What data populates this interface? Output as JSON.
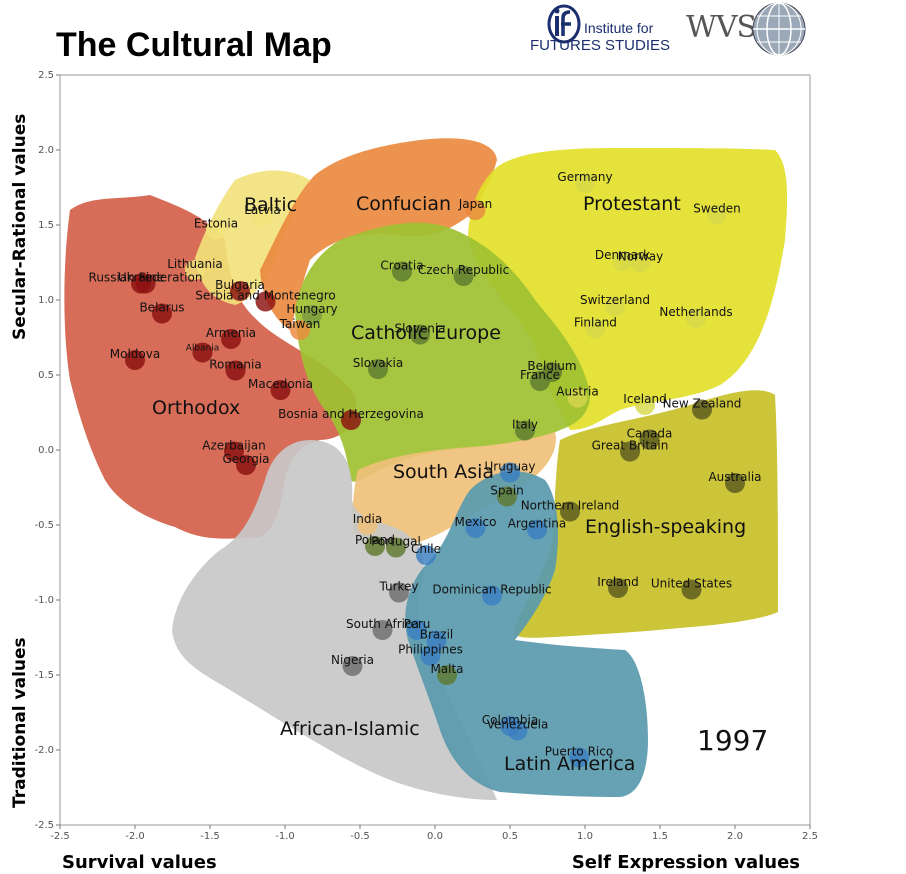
{
  "title": "The Cultural Map",
  "logos": {
    "iff_line1": "Institute for",
    "iff_line2": "FUTURES STUDIES",
    "wvs": "WVS"
  },
  "chart_data": {
    "type": "scatter",
    "year": "1997",
    "xlabel_left": "Survival values",
    "xlabel_right": "Self Expression values",
    "ylabel_top": "Secular-Rational values",
    "ylabel_bottom": "Traditional values",
    "xlim": [
      -2.5,
      2.5
    ],
    "ylim": [
      -2.5,
      2.5
    ],
    "xticks": [
      "-2.5",
      "-2.0",
      "-1.5",
      "-1.0",
      "-0.5",
      "0.0",
      "0.5",
      "1.0",
      "1.5",
      "2.0",
      "2.5"
    ],
    "yticks": [
      "2.5",
      "2.0",
      "1.5",
      "1.0",
      "0.5",
      "0.0",
      "-0.5",
      "-1.0",
      "-1.5",
      "-2.0",
      "-2.5"
    ],
    "grid": false,
    "regions": [
      {
        "name": "Orthodox",
        "color": "#d4614a"
      },
      {
        "name": "Baltic",
        "color": "#f2e27a"
      },
      {
        "name": "Confucian",
        "color": "#ea8a40"
      },
      {
        "name": "Protestant",
        "color": "#e2e02a"
      },
      {
        "name": "Catholic Europe",
        "color": "#9ec132"
      },
      {
        "name": "South Asia",
        "color": "#f0c078"
      },
      {
        "name": "English-speaking",
        "color": "#c9c12e"
      },
      {
        "name": "African-Islamic",
        "color": "#c8c8c8"
      },
      {
        "name": "Latin America",
        "color": "#5a9aae"
      }
    ],
    "countries": [
      {
        "name": "Russian Federation",
        "x": -1.93,
        "y": 1.11,
        "color": "#8b1010"
      },
      {
        "name": "Ukraine",
        "x": -1.96,
        "y": 1.11,
        "color": "#8b1010"
      },
      {
        "name": "Belarus",
        "x": -1.82,
        "y": 0.91,
        "color": "#8b1010"
      },
      {
        "name": "Moldova",
        "x": -2.0,
        "y": 0.6,
        "color": "#8b1010"
      },
      {
        "name": "Albania",
        "x": -1.55,
        "y": 0.65,
        "color": "#8b1010"
      },
      {
        "name": "Armenia",
        "x": -1.36,
        "y": 0.74,
        "color": "#8b1010"
      },
      {
        "name": "Romania",
        "x": -1.33,
        "y": 0.53,
        "color": "#8b1010"
      },
      {
        "name": "Macedonia",
        "x": -1.03,
        "y": 0.4,
        "color": "#8b1010"
      },
      {
        "name": "Bosnia and Herzegovina",
        "x": -0.56,
        "y": 0.2,
        "color": "#8b1010"
      },
      {
        "name": "Bulgaria",
        "x": -1.3,
        "y": 1.06,
        "color": "#8b1010"
      },
      {
        "name": "Serbia and Montenegro",
        "x": -1.13,
        "y": 0.99,
        "color": "#8b1010"
      },
      {
        "name": "Azerbaijan",
        "x": -1.34,
        "y": -0.01,
        "color": "#8b1010"
      },
      {
        "name": "Georgia",
        "x": -1.26,
        "y": -0.1,
        "color": "#8b1010"
      },
      {
        "name": "Estonia",
        "x": -1.46,
        "y": 1.47,
        "color": "#f2e27a"
      },
      {
        "name": "Latvia",
        "x": -1.15,
        "y": 1.56,
        "color": "#f2e27a"
      },
      {
        "name": "Lithuania",
        "x": -1.6,
        "y": 1.2,
        "color": "#f2e27a"
      },
      {
        "name": "Japan",
        "x": 0.27,
        "y": 1.6,
        "color": "#ea8a40"
      },
      {
        "name": "Taiwan",
        "x": -0.9,
        "y": 0.8,
        "color": "#ea8a40"
      },
      {
        "name": "Hungary",
        "x": -0.82,
        "y": 0.9,
        "color": "#7a9a40"
      },
      {
        "name": "Croatia",
        "x": -0.22,
        "y": 1.19,
        "color": "#5e7a2e"
      },
      {
        "name": "Czech Republic",
        "x": 0.19,
        "y": 1.16,
        "color": "#5e7a2e"
      },
      {
        "name": "Slovenia",
        "x": -0.1,
        "y": 0.77,
        "color": "#5e7a2e"
      },
      {
        "name": "Slovakia",
        "x": -0.38,
        "y": 0.54,
        "color": "#5e7a2e"
      },
      {
        "name": "Belgium",
        "x": 0.78,
        "y": 0.52,
        "color": "#5e7a2e"
      },
      {
        "name": "France",
        "x": 0.7,
        "y": 0.46,
        "color": "#5e7a2e"
      },
      {
        "name": "Austria",
        "x": 0.95,
        "y": 0.35,
        "color": "#d6d64a"
      },
      {
        "name": "Italy",
        "x": 0.6,
        "y": 0.13,
        "color": "#5e7a2e"
      },
      {
        "name": "Germany",
        "x": 1.0,
        "y": 1.78,
        "color": "#d8d84a"
      },
      {
        "name": "Sweden",
        "x": 1.88,
        "y": 1.57,
        "color": "#d8d84a"
      },
      {
        "name": "Denmark",
        "x": 1.25,
        "y": 1.26,
        "color": "#d8d84a"
      },
      {
        "name": "Norway",
        "x": 1.37,
        "y": 1.25,
        "color": "#d8d84a"
      },
      {
        "name": "Switzerland",
        "x": 1.2,
        "y": 0.96,
        "color": "#d8d84a"
      },
      {
        "name": "Finland",
        "x": 1.07,
        "y": 0.81,
        "color": "#d8d84a"
      },
      {
        "name": "Netherlands",
        "x": 1.74,
        "y": 0.88,
        "color": "#d8d84a"
      },
      {
        "name": "Iceland",
        "x": 1.4,
        "y": 0.3,
        "color": "#d8d84a"
      },
      {
        "name": "New Zealand",
        "x": 1.78,
        "y": 0.27,
        "color": "#5a5a20"
      },
      {
        "name": "Canada",
        "x": 1.43,
        "y": 0.07,
        "color": "#5a5a20"
      },
      {
        "name": "Great Britain",
        "x": 1.3,
        "y": -0.01,
        "color": "#5a5a20"
      },
      {
        "name": "Australia",
        "x": 2.0,
        "y": -0.22,
        "color": "#5a5a20"
      },
      {
        "name": "Northern Ireland",
        "x": 0.9,
        "y": -0.41,
        "color": "#5a5a20"
      },
      {
        "name": "Ireland",
        "x": 1.22,
        "y": -0.92,
        "color": "#5a5a20"
      },
      {
        "name": "United States",
        "x": 1.71,
        "y": -0.93,
        "color": "#5a5a20"
      },
      {
        "name": "Uruguay",
        "x": 0.5,
        "y": -0.15,
        "color": "#3a7fc1"
      },
      {
        "name": "Spain",
        "x": 0.48,
        "y": -0.31,
        "color": "#5e7a2e"
      },
      {
        "name": "Mexico",
        "x": 0.27,
        "y": -0.52,
        "color": "#3a7fc1"
      },
      {
        "name": "Argentina",
        "x": 0.68,
        "y": -0.53,
        "color": "#3a7fc1"
      },
      {
        "name": "India",
        "x": -0.45,
        "y": -0.5,
        "color": "#f0c078"
      },
      {
        "name": "Poland",
        "x": -0.4,
        "y": -0.64,
        "color": "#5e7a2e"
      },
      {
        "name": "Portugal",
        "x": -0.26,
        "y": -0.65,
        "color": "#5e7a2e"
      },
      {
        "name": "Chile",
        "x": -0.06,
        "y": -0.7,
        "color": "#3a7fc1"
      },
      {
        "name": "Turkey",
        "x": -0.24,
        "y": -0.95,
        "color": "#6e6e6e"
      },
      {
        "name": "Dominican Republic",
        "x": 0.38,
        "y": -0.97,
        "color": "#3a7fc1"
      },
      {
        "name": "South Africa",
        "x": -0.35,
        "y": -1.2,
        "color": "#6e6e6e"
      },
      {
        "name": "Peru",
        "x": -0.12,
        "y": -1.2,
        "color": "#3a7fc1"
      },
      {
        "name": "Brazil",
        "x": 0.01,
        "y": -1.27,
        "color": "#3a7fc1"
      },
      {
        "name": "Philippines",
        "x": -0.03,
        "y": -1.37,
        "color": "#3a7fc1"
      },
      {
        "name": "Nigeria",
        "x": -0.55,
        "y": -1.44,
        "color": "#6e6e6e"
      },
      {
        "name": "Malta",
        "x": 0.08,
        "y": -1.5,
        "color": "#5e7a2e"
      },
      {
        "name": "Colombia",
        "x": 0.5,
        "y": -1.84,
        "color": "#3a7fc1"
      },
      {
        "name": "Venezuela",
        "x": 0.55,
        "y": -1.87,
        "color": "#3a7fc1"
      },
      {
        "name": "Puerto Rico",
        "x": 0.96,
        "y": -2.05,
        "color": "#3a7fc1"
      }
    ]
  }
}
